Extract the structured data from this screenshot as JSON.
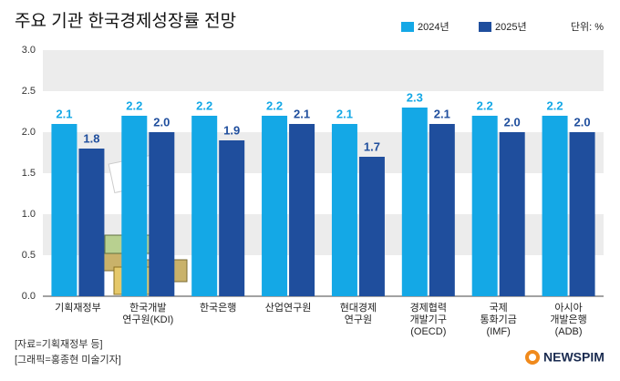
{
  "chart_data": {
    "type": "bar",
    "title": "주요 기관 한국경제성장률 전망",
    "unit": "단위: %",
    "categories": [
      "기획재정부",
      "한국개발\n연구원(KDI)",
      "한국은행",
      "산업연구원",
      "현대경제\n연구원",
      "경제협력\n개발기구\n(OECD)",
      "국제\n통화기금\n(IMF)",
      "아시아\n개발은행\n(ADB)"
    ],
    "series": [
      {
        "name": "2024년",
        "color": "#14a8e6",
        "values": [
          2.1,
          2.2,
          2.2,
          2.2,
          2.1,
          2.3,
          2.2,
          2.2
        ],
        "value_labels": [
          "2.1",
          "2.2",
          "2.2",
          "2.2",
          "2.1",
          "2.3",
          "2.2",
          "2.2"
        ]
      },
      {
        "name": "2025년",
        "color": "#1f4e9d",
        "values": [
          1.8,
          2.0,
          1.9,
          2.1,
          1.7,
          2.1,
          2.0,
          2.0
        ],
        "value_labels": [
          "1.8",
          "2.0",
          "1.9",
          "2.1",
          "1.7",
          "2.1",
          "2.0",
          "2.0"
        ]
      }
    ],
    "ylim": [
      0,
      3
    ],
    "yticks": [
      {
        "value": 0,
        "label": "0.0"
      },
      0.5,
      {
        "value": 1,
        "label": "1.0"
      },
      1.5,
      {
        "value": 2,
        "label": "2.0"
      },
      2.5,
      {
        "value": 3,
        "label": "3.0"
      }
    ],
    "grid": "bands"
  },
  "footer": {
    "sources": [
      "[자료=기획재정부 등]",
      "[그래픽=홍종현 미술기자]"
    ],
    "logo": "NEWSPIM"
  }
}
